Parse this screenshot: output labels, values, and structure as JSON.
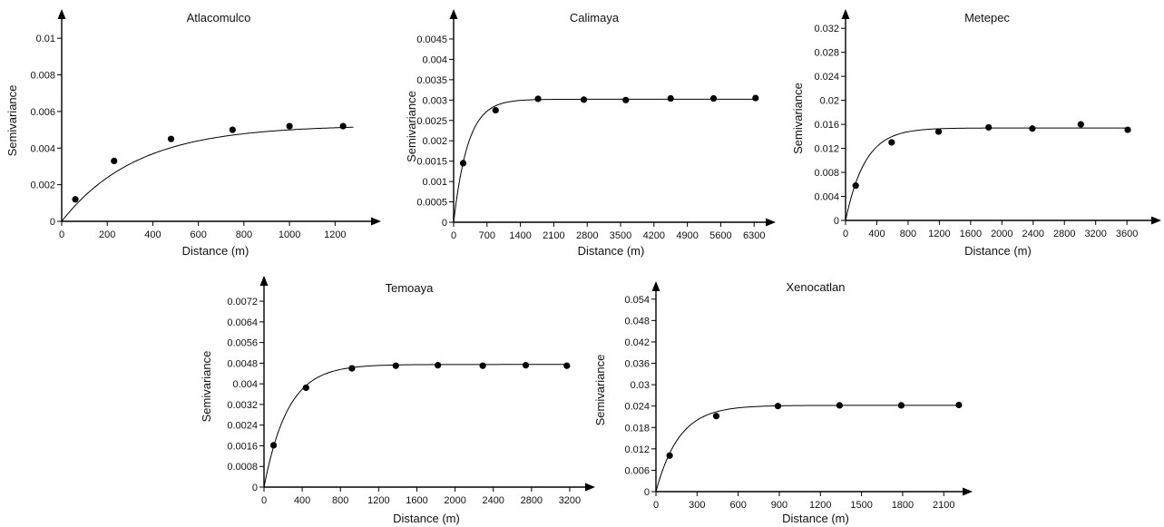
{
  "figure": {
    "xlabel": "Distance (m)",
    "ylabel": "Semivariance"
  },
  "chart_data": [
    {
      "type": "scatter",
      "title": "Atlacomulco",
      "xlabel": "Distance (m)",
      "ylabel": "Semivariance",
      "xlim": [
        0,
        1350
      ],
      "ylim": [
        0,
        0.011
      ],
      "xticks": [
        0,
        200,
        400,
        600,
        800,
        1000,
        1200
      ],
      "yticks": [
        0,
        0.002,
        0.004,
        0.006,
        0.008,
        0.01
      ],
      "ytick_labels": [
        "0",
        "0.002",
        "0.004",
        "0.006",
        "0.008",
        "0.01"
      ],
      "x": [
        60,
        230,
        480,
        750,
        1000,
        1235
      ],
      "y": [
        0.0012,
        0.0033,
        0.0045,
        0.005,
        0.0052,
        0.0052
      ],
      "fit": {
        "model": "exponential",
        "sill": 0.00525,
        "range": 330,
        "x_end": 1280
      },
      "grid": false,
      "legend": "none"
    },
    {
      "type": "scatter",
      "title": "Calimaya",
      "xlabel": "Distance (m)",
      "ylabel": "Semivariance",
      "xlim": [
        0,
        6600
      ],
      "ylim": [
        0,
        0.0047
      ],
      "xticks": [
        0,
        700,
        1400,
        2100,
        2800,
        3500,
        4200,
        4900,
        5600,
        6300
      ],
      "yticks": [
        0,
        0.0005,
        0.001,
        0.0015,
        0.002,
        0.0025,
        0.003,
        0.0035,
        0.004,
        0.0045
      ],
      "ytick_labels": [
        "0",
        "0.0005",
        "0.001",
        "0.0015",
        "0.002",
        "0.0025",
        "0.003",
        "0.0035",
        "0.004",
        "0.0045"
      ],
      "x": [
        200,
        880,
        1770,
        2730,
        3610,
        4550,
        5450,
        6330
      ],
      "y": [
        0.00145,
        0.00275,
        0.00303,
        0.00301,
        0.003,
        0.00304,
        0.00304,
        0.00305
      ],
      "fit": {
        "model": "exponential",
        "sill": 0.00302,
        "range": 300,
        "x_end": 6350
      },
      "grid": false,
      "legend": "none"
    },
    {
      "type": "scatter",
      "title": "Metepec",
      "xlabel": "Distance (m)",
      "ylabel": "Semivariance",
      "xlim": [
        0,
        3900
      ],
      "ylim": [
        0,
        0.034
      ],
      "xticks": [
        0,
        400,
        800,
        1200,
        1600,
        2000,
        2400,
        2800,
        3200,
        3600
      ],
      "yticks": [
        0,
        0.004,
        0.008,
        0.012,
        0.016,
        0.02,
        0.024,
        0.028,
        0.032
      ],
      "ytick_labels": [
        "0",
        "0.004",
        "0.008",
        "0.012",
        "0.016",
        "0.02",
        "0.024",
        "0.028",
        "0.032"
      ],
      "x": [
        130,
        590,
        1190,
        1830,
        2390,
        3010,
        3610
      ],
      "y": [
        0.0058,
        0.013,
        0.0148,
        0.0155,
        0.0153,
        0.016,
        0.0151
      ],
      "fit": {
        "model": "exponential",
        "sill": 0.0154,
        "range": 250,
        "x_end": 3620
      },
      "grid": false,
      "legend": "none"
    },
    {
      "type": "scatter",
      "title": "Temoaya",
      "xlabel": "Distance (m)",
      "ylabel": "Semivariance",
      "xlim": [
        0,
        3400
      ],
      "ylim": [
        0,
        0.0078
      ],
      "xticks": [
        0,
        400,
        800,
        1200,
        1600,
        2000,
        2400,
        2800,
        3200
      ],
      "yticks": [
        0,
        0.0008,
        0.0016,
        0.0024,
        0.0032,
        0.004,
        0.0048,
        0.0056,
        0.0064,
        0.0072
      ],
      "ytick_labels": [
        "0",
        "0.0008",
        "0.0016",
        "0.0024",
        "0.0032",
        "0.004",
        "0.0048",
        "0.0056",
        "0.0064",
        "0.0072"
      ],
      "x": [
        100,
        440,
        920,
        1380,
        1820,
        2290,
        2740,
        3170
      ],
      "y": [
        0.00162,
        0.00385,
        0.0046,
        0.0047,
        0.00472,
        0.0047,
        0.00472,
        0.0047
      ],
      "fit": {
        "model": "exponential",
        "sill": 0.00475,
        "range": 250,
        "x_end": 3180
      },
      "grid": false,
      "legend": "none"
    },
    {
      "type": "scatter",
      "title": "Xenocatlan",
      "xlabel": "Distance (m)",
      "ylabel": "Semivariance",
      "xlim": [
        0,
        2330
      ],
      "ylim": [
        0,
        0.057
      ],
      "xticks": [
        0,
        300,
        600,
        900,
        1200,
        1500,
        1800,
        2100
      ],
      "yticks": [
        0,
        0.006,
        0.012,
        0.018,
        0.024,
        0.03,
        0.036,
        0.042,
        0.048,
        0.054
      ],
      "ytick_labels": [
        "0",
        "0.006",
        "0.012",
        "0.018",
        "0.024",
        "0.03",
        "0.036",
        "0.042",
        "0.048",
        "0.054"
      ],
      "x": [
        100,
        440,
        890,
        1340,
        1790,
        2210
      ],
      "y": [
        0.0101,
        0.0212,
        0.024,
        0.0242,
        0.0242,
        0.0243
      ],
      "fit": {
        "model": "exponential",
        "sill": 0.0242,
        "range": 170,
        "x_end": 2220
      },
      "grid": false,
      "legend": "none"
    }
  ]
}
